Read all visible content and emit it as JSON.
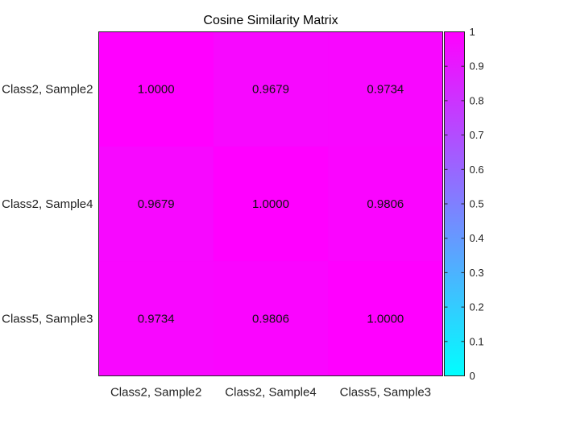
{
  "chart_data": {
    "type": "heatmap",
    "title": "Cosine Similarity Matrix",
    "x_labels": [
      "Class2, Sample2",
      "Class2, Sample4",
      "Class5, Sample3"
    ],
    "y_labels": [
      "Class2, Sample2",
      "Class2, Sample4",
      "Class5, Sample3"
    ],
    "values": [
      [
        1.0,
        0.9679,
        0.9734
      ],
      [
        0.9679,
        1.0,
        0.9806
      ],
      [
        0.9734,
        0.9806,
        1.0
      ]
    ],
    "value_labels": [
      [
        "1.0000",
        "0.9679",
        "0.9734"
      ],
      [
        "0.9679",
        "1.0000",
        "0.9806"
      ],
      [
        "0.9734",
        "0.9806",
        "1.0000"
      ]
    ],
    "colormap": "cool",
    "colormap_low": "#00ffff",
    "colormap_high": "#ff00ff",
    "colorbar": {
      "range": [
        0,
        1
      ],
      "ticks": [
        "0",
        "0.1",
        "0.2",
        "0.3",
        "0.4",
        "0.5",
        "0.6",
        "0.7",
        "0.8",
        "0.9",
        "1"
      ]
    },
    "grid": false
  }
}
